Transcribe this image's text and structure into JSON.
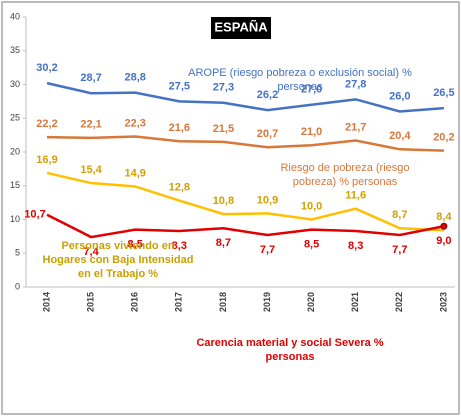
{
  "chart_data": {
    "type": "line",
    "title": "ESPAÑA",
    "categories": [
      "2014",
      "2015",
      "2016",
      "2017",
      "2018",
      "2019",
      "2020",
      "2021",
      "2022",
      "2023"
    ],
    "ylim": [
      0,
      40
    ],
    "yticks": [
      0,
      5,
      10,
      15,
      20,
      25,
      30,
      35,
      40
    ],
    "grid": false,
    "series": [
      {
        "name": "AROPE (riesgo pobreza o exclusión social) % personas",
        "color": "#4472c4",
        "values": [
          30.2,
          28.7,
          28.8,
          27.5,
          27.3,
          26.2,
          27.0,
          27.8,
          26.0,
          26.5
        ],
        "value_labels": [
          "30,2",
          "28,7",
          "28,8",
          "27,5",
          "27,3",
          "26,2",
          "27,0",
          "27,8",
          "26,0",
          "26,5"
        ]
      },
      {
        "name": "Riesgo de pobreza (riesgo pobreza) % personas",
        "color": "#d9773a",
        "values": [
          22.2,
          22.1,
          22.3,
          21.6,
          21.5,
          20.7,
          21.0,
          21.7,
          20.4,
          20.2
        ],
        "value_labels": [
          "22,2",
          "22,1",
          "22,3",
          "21,6",
          "21,5",
          "20,7",
          "21,0",
          "21,7",
          "20,4",
          "20,2"
        ]
      },
      {
        "name": "Personas viviendo en Hogares con Baja Intensidad en el Trabajo %",
        "color": "#ffc000",
        "values": [
          16.9,
          15.4,
          14.9,
          12.8,
          10.8,
          10.9,
          10.0,
          11.6,
          8.7,
          8.4
        ],
        "value_labels": [
          "16,9",
          "15,4",
          "14,9",
          "12,8",
          "10,8",
          "10,9",
          "10,0",
          "11,6",
          "8,7",
          "8,4"
        ]
      },
      {
        "name": "Carencia material y social Severa % personas",
        "color": "#e00000",
        "values": [
          10.7,
          7.4,
          8.5,
          8.3,
          8.7,
          7.7,
          8.5,
          8.3,
          7.7,
          9.0
        ],
        "value_labels": [
          "10,7",
          "7,4",
          "8,5",
          "8,3",
          "8,7",
          "7,7",
          "8,5",
          "8,3",
          "7,7",
          "9,0"
        ]
      }
    ]
  }
}
